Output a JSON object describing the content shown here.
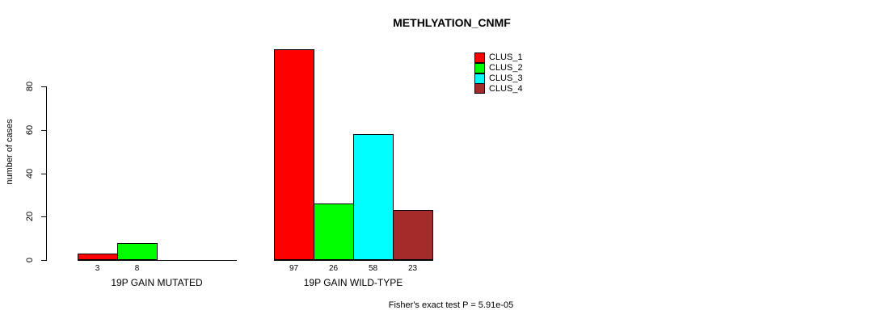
{
  "chart_data": {
    "type": "bar",
    "title": "METHLYATION_CNMF",
    "ylabel": "number of cases",
    "xlabel": "",
    "ylim": [
      0,
      100
    ],
    "yticks": [
      0,
      20,
      40,
      60,
      80
    ],
    "grid": false,
    "legend_position": "top-right",
    "categories": [
      "19P GAIN MUTATED",
      "19P GAIN WILD-TYPE"
    ],
    "series": [
      {
        "name": "CLUS_1",
        "color": "#FF0000",
        "values": [
          3,
          97
        ]
      },
      {
        "name": "CLUS_2",
        "color": "#00FF00",
        "values": [
          8,
          26
        ]
      },
      {
        "name": "CLUS_3",
        "color": "#00FFFF",
        "values": [
          null,
          58
        ]
      },
      {
        "name": "CLUS_4",
        "color": "#A52A2A",
        "values": [
          null,
          23
        ]
      }
    ],
    "bar_value_labels_visible": true,
    "footnote": "Fisher's exact test P = 5.91e-05"
  }
}
